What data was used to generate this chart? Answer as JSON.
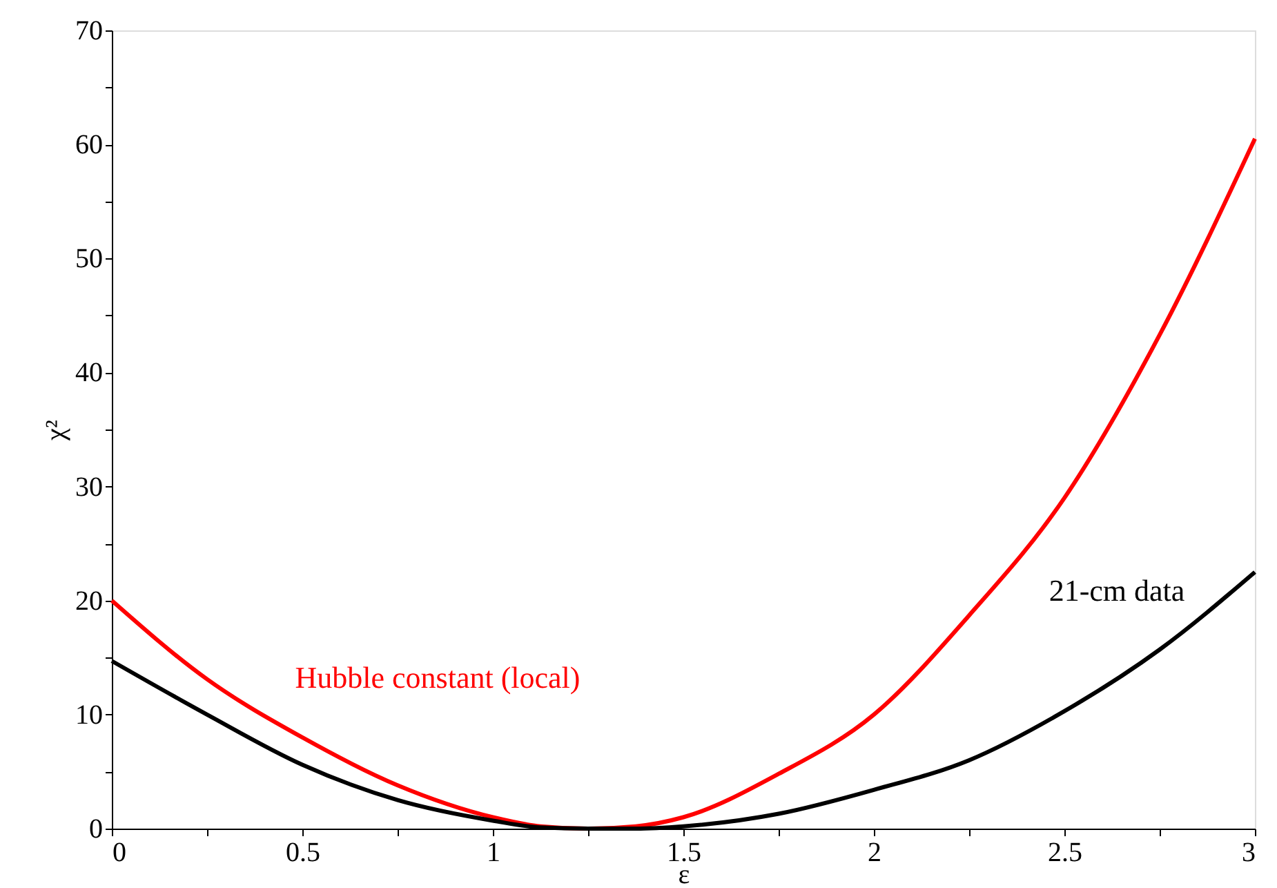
{
  "chart_data": {
    "type": "line",
    "xlabel": "ε",
    "ylabel": "χ²",
    "x": [
      0,
      0.25,
      0.5,
      0.75,
      1,
      1.125,
      1.25,
      1.375,
      1.5,
      1.75,
      2,
      2.25,
      2.5,
      2.75,
      3
    ],
    "series": [
      {
        "name": "Hubble constant (local)",
        "color": "#ff0000",
        "values": [
          20,
          13.1,
          8.0,
          3.8,
          1.0,
          0.2,
          0,
          0.2,
          1.0,
          4.8,
          10.0,
          18.7,
          29.0,
          43.3,
          60.5
        ]
      },
      {
        "name": "21-cm data",
        "color": "#000000",
        "values": [
          14.7,
          10.0,
          5.6,
          2.5,
          0.7,
          0.1,
          0,
          0,
          0.2,
          1.3,
          3.4,
          6.0,
          10.3,
          15.7,
          22.5
        ]
      }
    ],
    "xlim": [
      0,
      3
    ],
    "ylim": [
      0,
      70
    ],
    "xticks": [
      0,
      {
        "value": 0.25,
        "label": null
      },
      0.5,
      {
        "value": 0.75,
        "label": null
      },
      1,
      {
        "value": 1.25,
        "label": null
      },
      1.5,
      {
        "value": 1.75,
        "label": null
      },
      2,
      {
        "value": 2.25,
        "label": null
      },
      2.5,
      {
        "value": 2.75,
        "label": null
      },
      3
    ],
    "yticks": [
      0,
      {
        "value": 5,
        "label": null
      },
      10,
      {
        "value": 15,
        "label": null
      },
      20,
      {
        "value": 25,
        "label": null
      },
      30,
      {
        "value": 35,
        "label": null
      },
      40,
      {
        "value": 45,
        "label": null
      },
      50,
      {
        "value": 55,
        "label": null
      },
      60,
      {
        "value": 65,
        "label": null
      },
      70
    ],
    "grid": false,
    "legend": false,
    "marker": "none",
    "line_style": "solid"
  }
}
